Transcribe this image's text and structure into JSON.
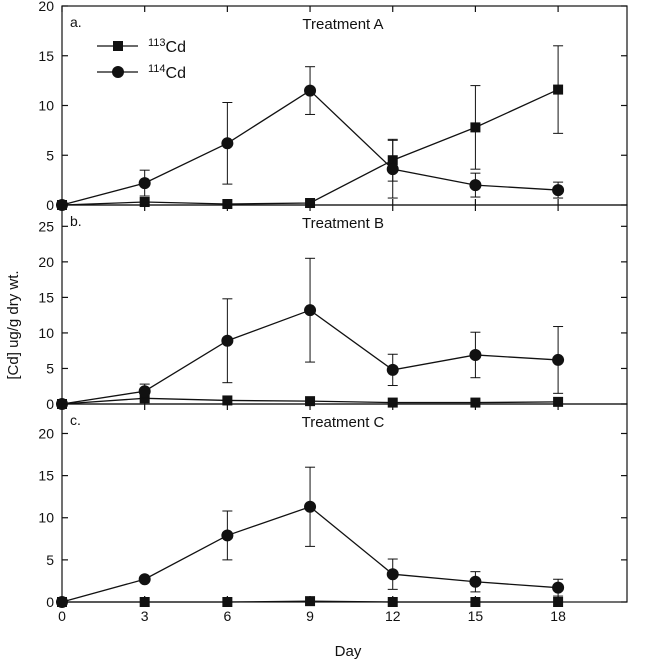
{
  "figure": {
    "ylabel": "[Cd] ug/g dry wt.",
    "xlabel": "Day",
    "legend": [
      {
        "prefix": "113",
        "suffix": "Cd",
        "marker": "square"
      },
      {
        "prefix": "114",
        "suffix": "Cd",
        "marker": "circle"
      }
    ]
  },
  "chart_data": [
    {
      "type": "line",
      "panel": "a.",
      "title": "Treatment A",
      "x": [
        0,
        3,
        6,
        9,
        12,
        15,
        18
      ],
      "xlim": [
        0,
        20.5
      ],
      "ylim": [
        0,
        20
      ],
      "yticks": [
        0,
        5,
        10,
        15,
        20
      ],
      "xticks": [
        0,
        3,
        6,
        9,
        12,
        15,
        18
      ],
      "legend_position": "top-left",
      "series": [
        {
          "name": "113Cd",
          "marker": "square",
          "values": [
            0,
            0.3,
            0.1,
            0.2,
            4.5,
            7.8,
            11.6
          ],
          "error": [
            0,
            0,
            0,
            0,
            2.1,
            4.2,
            4.4
          ]
        },
        {
          "name": "114Cd",
          "marker": "circle",
          "values": [
            0,
            2.2,
            6.2,
            11.5,
            3.6,
            2.0,
            1.5
          ],
          "error": [
            0,
            1.3,
            4.1,
            2.4,
            2.9,
            1.2,
            0.8
          ]
        }
      ]
    },
    {
      "type": "line",
      "panel": "b.",
      "title": "Treatment B",
      "x": [
        0,
        3,
        6,
        9,
        12,
        15,
        18
      ],
      "xlim": [
        0,
        20.5
      ],
      "ylim": [
        0,
        28
      ],
      "yticks": [
        0,
        5,
        10,
        15,
        20,
        25
      ],
      "xticks": [
        0,
        3,
        6,
        9,
        12,
        15,
        18
      ],
      "series": [
        {
          "name": "113Cd",
          "marker": "square",
          "values": [
            0,
            0.8,
            0.5,
            0.4,
            0.2,
            0.2,
            0.3
          ],
          "error": [
            0,
            0,
            0,
            0,
            0,
            0,
            0
          ]
        },
        {
          "name": "114Cd",
          "marker": "circle",
          "values": [
            0,
            1.8,
            8.9,
            13.2,
            4.8,
            6.9,
            6.2
          ],
          "error": [
            0,
            1.0,
            5.9,
            7.3,
            2.2,
            3.2,
            4.7
          ]
        }
      ]
    },
    {
      "type": "line",
      "panel": "c.",
      "title": "Treatment C",
      "x": [
        0,
        3,
        6,
        9,
        12,
        15,
        18
      ],
      "xlim": [
        0,
        20.5
      ],
      "ylim": [
        0,
        23.5
      ],
      "yticks": [
        0,
        5,
        10,
        15,
        20
      ],
      "xticks": [
        0,
        3,
        6,
        9,
        12,
        15,
        18
      ],
      "series": [
        {
          "name": "113Cd",
          "marker": "square",
          "values": [
            0,
            0,
            0,
            0.1,
            0,
            0,
            0
          ],
          "error": [
            0,
            0,
            0,
            0,
            0,
            0,
            0
          ]
        },
        {
          "name": "114Cd",
          "marker": "circle",
          "values": [
            0,
            2.7,
            7.9,
            11.3,
            3.3,
            2.4,
            1.7
          ],
          "error": [
            0,
            0.3,
            2.9,
            4.7,
            1.8,
            1.2,
            1.0
          ]
        }
      ]
    }
  ]
}
